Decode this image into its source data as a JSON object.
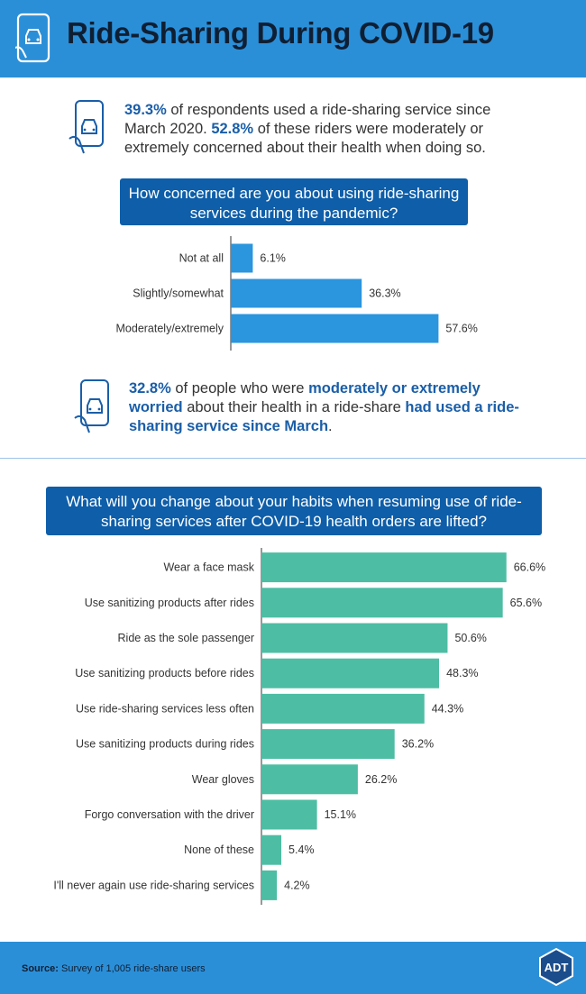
{
  "header": {
    "title": "Ride-Sharing During COVID-19"
  },
  "intro1": {
    "pct1": "39.3%",
    "text1": " of respondents used a ride-sharing service since March 2020. ",
    "pct2": "52.8%",
    "text2": " of these riders were moderately or extremely concerned about their health when doing so."
  },
  "intro2": {
    "pct": "32.8%",
    "t1": " of people who were ",
    "b1": "moderately or extremely worried",
    "t2": " about their health in a ride-share ",
    "b2": "had used a ride-sharing service since March",
    "t3": "."
  },
  "colors": {
    "bar1": "#2b95dd",
    "bar2": "#4dbda3",
    "header": "#2b8fd8",
    "dark_blue": "#0e5ea9"
  },
  "chart_data": [
    {
      "type": "bar",
      "orientation": "horizontal",
      "title": "How concerned are you about using ride-sharing services during the pandemic?",
      "categories": [
        "Not at all",
        "Slightly/somewhat",
        "Moderately/extremely"
      ],
      "values": [
        6.1,
        36.3,
        57.6
      ],
      "value_labels": [
        "6.1%",
        "36.3%",
        "57.6%"
      ],
      "unit": "%"
    },
    {
      "type": "bar",
      "orientation": "horizontal",
      "title": "What will you change about your habits when resuming use of ride-sharing services after COVID-19 health orders are lifted?",
      "categories": [
        "Wear a face mask",
        "Use sanitizing products after rides",
        "Ride as the sole passenger",
        "Use sanitizing products before rides",
        "Use ride-sharing services less often",
        "Use sanitizing products during rides",
        "Wear gloves",
        "Forgo conversation with the driver",
        "None of these",
        "I'll never again use ride-sharing services"
      ],
      "values": [
        66.6,
        65.6,
        50.6,
        48.3,
        44.3,
        36.2,
        26.2,
        15.1,
        5.4,
        4.2
      ],
      "value_labels": [
        "66.6%",
        "65.6%",
        "50.6%",
        "48.3%",
        "44.3%",
        "36.2%",
        "26.2%",
        "15.1%",
        "5.4%",
        "4.2%"
      ],
      "unit": "%"
    }
  ],
  "footer": {
    "source_label": "Source:",
    "source_text": " Survey of 1,005 ride-share users"
  },
  "logo": {
    "text": "ADT"
  }
}
